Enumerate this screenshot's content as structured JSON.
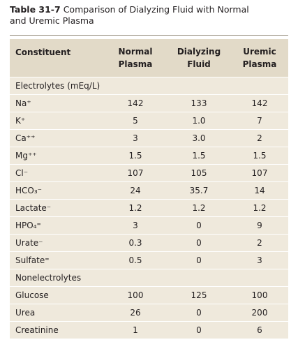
{
  "title": {
    "label": "Table 31-7",
    "text": "Comparison of Dialyzing Fluid with Normal and Uremic Plasma"
  },
  "table": {
    "header": [
      "Constituent",
      "Normal Plasma",
      "Dialyzing Fluid",
      "Uremic Plasma"
    ],
    "rows": [
      [
        "Electrolytes (mEq/L)"
      ],
      [
        "Na⁺",
        "142",
        "133",
        "142"
      ],
      [
        "K⁺",
        "5",
        "1.0",
        "7"
      ],
      [
        "Ca⁺⁺",
        "3",
        "3.0",
        "2"
      ],
      [
        "Mg⁺⁺",
        "1.5",
        "1.5",
        "1.5"
      ],
      [
        "Cl⁻",
        "107",
        "105",
        "107"
      ],
      [
        "HCO₃⁻",
        "24",
        "35.7",
        "14"
      ],
      [
        "Lactate⁻",
        "1.2",
        "1.2",
        "1.2"
      ],
      [
        "HPO₄⁼",
        "3",
        "0",
        "9"
      ],
      [
        "Urate⁻",
        "0.3",
        "0",
        "2"
      ],
      [
        "Sulfate⁼",
        "0.5",
        "0",
        "3"
      ],
      [
        "Nonelectrolytes"
      ],
      [
        "Glucose",
        "100",
        "125",
        "100"
      ],
      [
        "Urea",
        "26",
        "0",
        "200"
      ],
      [
        "Creatinine",
        "1",
        "0",
        "6"
      ]
    ]
  }
}
